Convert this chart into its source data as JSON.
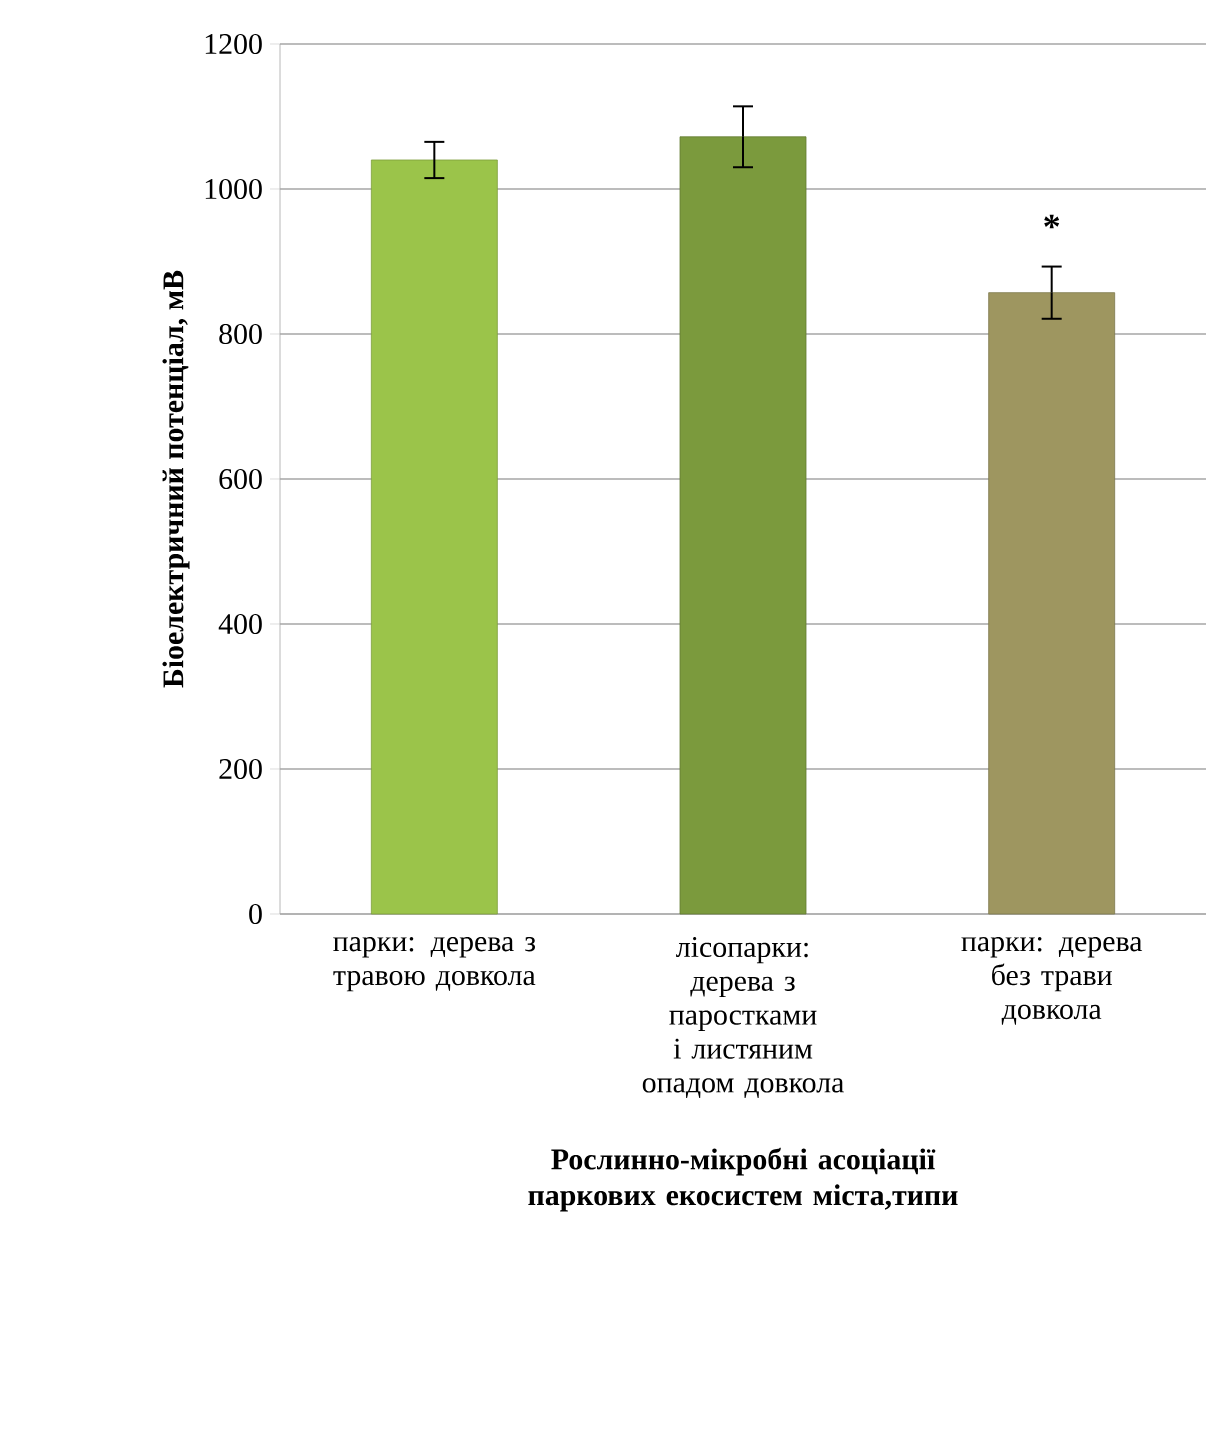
{
  "chart_data": {
    "type": "bar",
    "xlabel": "Рослинно-мікробні асоціації паркових екосистем міста,типи",
    "ylabel": "Біоелектричний потенціал, мВ",
    "categories": [
      "парки: дерева з травою довкола",
      "лісопарки: дерева з паростками і листяним опадом довкола",
      "парки: дерева без трави довкола"
    ],
    "values": [
      1040,
      1072,
      857
    ],
    "errors": [
      25,
      42,
      36
    ],
    "colors": [
      "#9bc44a",
      "#7b9a3d",
      "#9e9660"
    ],
    "ylim": [
      0,
      1200
    ],
    "yticks": [
      0,
      200,
      400,
      600,
      800,
      1000,
      1200
    ],
    "grid": "y",
    "annotations": [
      "*"
    ]
  }
}
